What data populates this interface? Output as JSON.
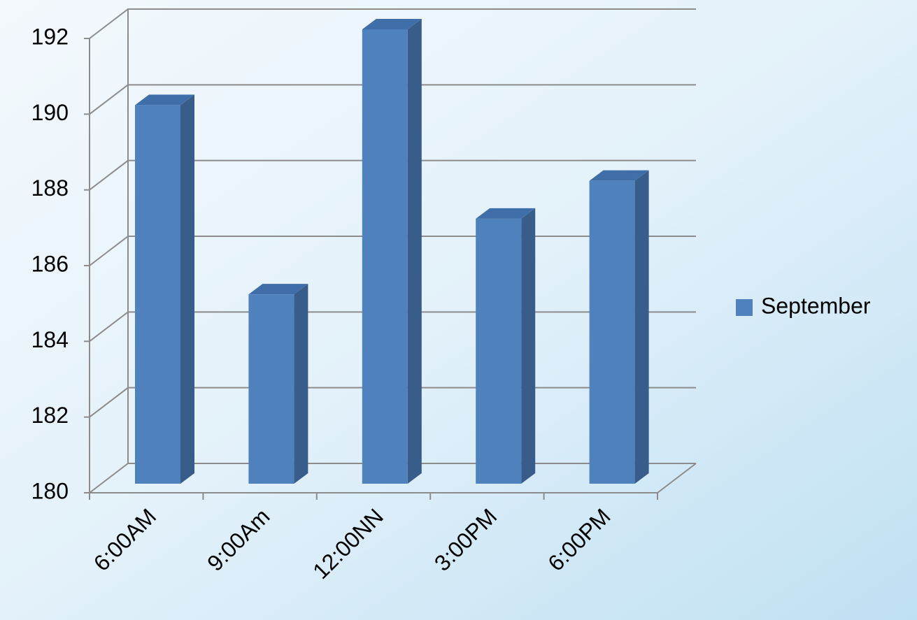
{
  "chart_data": {
    "type": "bar3d",
    "categories": [
      "6:00AM",
      "9:00Am",
      "12:00NN",
      "3:00PM",
      "6:00PM"
    ],
    "series": [
      {
        "name": "September",
        "color": "#4f81bd",
        "values": [
          190,
          185,
          192,
          187,
          188
        ]
      }
    ],
    "ylim": [
      180,
      192
    ],
    "yticks": [
      180,
      182,
      184,
      186,
      188,
      190,
      192
    ],
    "grid": true,
    "legend": "right"
  }
}
